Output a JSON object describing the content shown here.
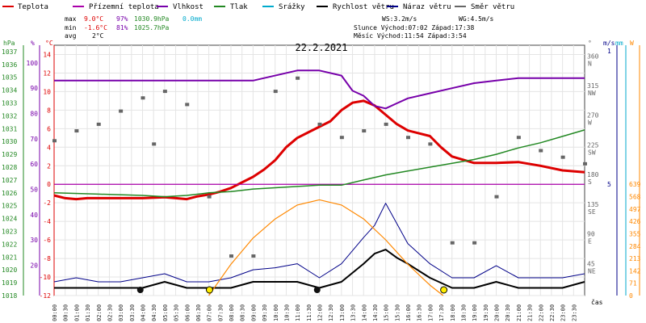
{
  "legend": [
    {
      "label": "Teplota",
      "color": "#dd0000"
    },
    {
      "label": "Přízemní teplota",
      "color": "#aa00aa"
    },
    {
      "label": "Vlhkost",
      "color": "#7700aa"
    },
    {
      "label": "Tlak",
      "color": "#228822"
    },
    {
      "label": "Srážky",
      "color": "#00aacc"
    },
    {
      "label": "Rychlost větru",
      "color": "#000000"
    },
    {
      "label": "Náraz větru",
      "color": "#000088"
    },
    {
      "label": "Směr větru",
      "color": "#666666"
    }
  ],
  "stats": {
    "max_label": "max",
    "min_label": "min",
    "avg_label": "avg",
    "max_temp": "9.0°C",
    "max_hum": "97%",
    "max_press": "1030.9hPa",
    "max_rain": "0.0mm",
    "min_temp": "-1.6°C",
    "min_hum": "81%",
    "min_press": "1025.7hPa",
    "avg_temp": "2°C",
    "ws": "WS:3.2m/s",
    "wg": "WG:4.5m/s",
    "sun": "Slunce Východ:07:02  Západ:17:38",
    "moon": "Měsíc  Východ:11:54  Západ:3:54"
  },
  "date": "22.2.2021",
  "axes": {
    "hpa_unit": "hPa",
    "pct_unit": "%",
    "c_unit": "°C",
    "deg_unit": "°",
    "ms_unit": "m/s",
    "mm_unit": "mm",
    "w_unit": "W",
    "time_label": "čas",
    "hpa_ticks": [
      "1037",
      "1036",
      "1035",
      "1034",
      "1033",
      "1032",
      "1031",
      "1030",
      "1029",
      "1028",
      "1027",
      "1026",
      "1025",
      "1024",
      "1023",
      "1022",
      "1021",
      "1020",
      "1019",
      "1018"
    ],
    "pct_ticks": [
      "100",
      "90",
      "80",
      "70",
      "60",
      "50",
      "40",
      "30",
      "20"
    ],
    "c_ticks": [
      "14",
      "12",
      "10",
      "8",
      "6",
      "4",
      "2",
      "0",
      "-2",
      "-4",
      "-6",
      "-8",
      "-10",
      "-12"
    ],
    "dir_ticks": [
      {
        "deg": "360",
        "name": "N"
      },
      {
        "deg": "315",
        "name": "NW"
      },
      {
        "deg": "270",
        "name": "W"
      },
      {
        "deg": "225",
        "name": "SW"
      },
      {
        "deg": "180",
        "name": "S"
      },
      {
        "deg": "135",
        "name": "SE"
      },
      {
        "deg": "90",
        "name": "E"
      },
      {
        "deg": "45",
        "name": "NE"
      }
    ],
    "ms_ticks": [
      "5",
      "1"
    ],
    "w_ticks": [
      "639",
      "568",
      "497",
      "426",
      "355",
      "284",
      "213",
      "142",
      "71",
      "0"
    ],
    "time_ticks": [
      "00:00",
      "00:30",
      "01:00",
      "01:30",
      "02:00",
      "02:30",
      "03:00",
      "03:30",
      "04:00",
      "04:30",
      "05:00",
      "05:30",
      "06:00",
      "06:30",
      "07:00",
      "07:30",
      "08:00",
      "08:30",
      "09:00",
      "09:30",
      "10:00",
      "10:30",
      "11:00",
      "11:30",
      "12:00",
      "12:30",
      "13:00",
      "13:30",
      "14:00",
      "14:30",
      "15:00",
      "15:30",
      "16:00",
      "16:30",
      "17:00",
      "17:30",
      "18:00",
      "18:30",
      "19:00",
      "19:30",
      "20:00",
      "20:30",
      "21:00",
      "21:30",
      "22:00",
      "22:30",
      "23:00",
      "23:30"
    ]
  },
  "chart_data": {
    "type": "line",
    "title": "22.2.2021",
    "x_unit": "hours",
    "ylim_temp": [
      -12,
      15
    ],
    "series": [
      {
        "name": "Teplota",
        "color": "#dd0000",
        "unit": "°C",
        "x": [
          0,
          0.5,
          1,
          1.5,
          2,
          3,
          4,
          5,
          5.5,
          6,
          6.5,
          7,
          7.5,
          8,
          8.5,
          9,
          9.5,
          10,
          10.5,
          11,
          11.5,
          12,
          12.5,
          13,
          13.5,
          14,
          14.5,
          15,
          15.5,
          16,
          16.5,
          17,
          17.5,
          18,
          19,
          20,
          21,
          22,
          23,
          24
        ],
        "y": [
          -1.2,
          -1.5,
          -1.6,
          -1.5,
          -1.5,
          -1.5,
          -1.5,
          -1.4,
          -1.5,
          -1.6,
          -1.3,
          -1.1,
          -0.8,
          -0.4,
          0.2,
          0.8,
          1.6,
          2.6,
          4.0,
          5.0,
          5.6,
          6.2,
          6.8,
          8.0,
          8.8,
          9.0,
          8.5,
          7.5,
          6.5,
          5.8,
          5.5,
          5.2,
          4.0,
          3.0,
          2.3,
          2.3,
          2.4,
          2.0,
          1.5,
          1.3
        ]
      },
      {
        "name": "Přízemní teplota",
        "color": "#aa00aa",
        "unit": "°C",
        "x": [
          0,
          24
        ],
        "y": [
          0,
          0
        ]
      },
      {
        "name": "Vlhkost",
        "color": "#7700aa",
        "unit": "%",
        "x": [
          0,
          3,
          6,
          9,
          11,
          12,
          13,
          13.5,
          14,
          14.5,
          15,
          15.5,
          16,
          17,
          18,
          19,
          20,
          21,
          22,
          23,
          24
        ],
        "y": [
          93,
          93,
          93,
          93,
          97,
          97,
          95,
          89,
          87,
          83,
          82,
          84,
          86,
          88,
          90,
          92,
          93,
          94,
          94,
          94,
          94
        ]
      },
      {
        "name": "Tlak",
        "color": "#228822",
        "unit": "hPa",
        "x": [
          0,
          2,
          4,
          5,
          6,
          7,
          8,
          9,
          10,
          11,
          12,
          13,
          14,
          15,
          16,
          17,
          18,
          19,
          20,
          21,
          22,
          23,
          24
        ],
        "y": [
          1026.0,
          1025.9,
          1025.8,
          1025.7,
          1025.8,
          1026.0,
          1026.1,
          1026.3,
          1026.4,
          1026.5,
          1026.6,
          1026.6,
          1027.0,
          1027.4,
          1027.7,
          1028.0,
          1028.3,
          1028.6,
          1029.0,
          1029.5,
          1029.9,
          1030.4,
          1030.9
        ]
      },
      {
        "name": "Rychlost větru",
        "color": "#000000",
        "unit": "m/s",
        "x": [
          0,
          1,
          2,
          3,
          4,
          5,
          6,
          7,
          8,
          9,
          10,
          11,
          12,
          13,
          14,
          14.5,
          15,
          15.5,
          16,
          17,
          18,
          19,
          20,
          21,
          22,
          23,
          24
        ],
        "y": [
          0.3,
          0.3,
          0.3,
          0.3,
          0.3,
          0.6,
          0.3,
          0.3,
          0.3,
          0.6,
          0.6,
          0.6,
          0.3,
          0.6,
          1.5,
          2.0,
          2.2,
          1.8,
          1.5,
          0.8,
          0.3,
          0.3,
          0.6,
          0.3,
          0.3,
          0.3,
          0.6
        ]
      },
      {
        "name": "Náraz větru",
        "color": "#000088",
        "unit": "m/s",
        "x": [
          0,
          1,
          2,
          3,
          4,
          5,
          6,
          7,
          8,
          9,
          10,
          11,
          12,
          13,
          14,
          14.5,
          15,
          15.5,
          16,
          17,
          18,
          19,
          20,
          21,
          22,
          23,
          24
        ],
        "y": [
          0.6,
          0.8,
          0.6,
          0.6,
          0.8,
          1.0,
          0.6,
          0.6,
          0.8,
          1.2,
          1.3,
          1.5,
          0.8,
          1.5,
          2.8,
          3.4,
          4.5,
          3.5,
          2.5,
          1.5,
          0.8,
          0.8,
          1.4,
          0.8,
          0.8,
          0.8,
          1.0
        ]
      },
      {
        "name": "Směr větru",
        "color": "#666666",
        "unit": "°",
        "x": [
          0,
          1,
          2,
          3,
          4,
          4.5,
          5,
          6,
          7,
          8,
          9,
          10,
          11,
          12,
          13,
          14,
          15,
          16,
          17,
          18,
          19,
          20,
          21,
          22,
          23,
          24
        ],
        "y": [
          235,
          250,
          260,
          280,
          300,
          230,
          310,
          290,
          150,
          60,
          60,
          310,
          330,
          260,
          240,
          250,
          260,
          240,
          230,
          80,
          80,
          150,
          240,
          220,
          210,
          200
        ]
      },
      {
        "name": "Solar",
        "color": "#ff8800",
        "unit": "W",
        "x": [
          7.0,
          8,
          9,
          10,
          11,
          12,
          13,
          14,
          15,
          16,
          17,
          17.6
        ],
        "y": [
          0,
          180,
          330,
          440,
          520,
          550,
          520,
          440,
          320,
          180,
          60,
          0
        ]
      }
    ]
  }
}
